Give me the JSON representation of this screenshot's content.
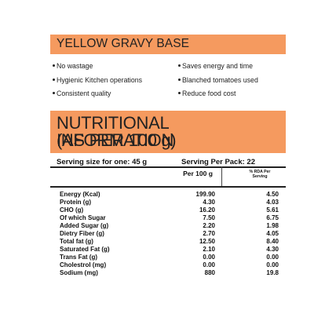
{
  "banner": {
    "title": "YELLOW GRAVY BASE"
  },
  "features": {
    "left": [
      "No wastage",
      "Hygienic Kitchen operations",
      "Consistent quality"
    ],
    "right": [
      "Saves energy and time",
      "Blanched tomatoes used",
      "Reduce food cost"
    ]
  },
  "nutrition": {
    "title_line1": "NUTRITIONAL INFORMATION",
    "title_line2": "(AS PER 100 g)",
    "serving_size": "Serving size for one: 45 g",
    "serving_pack": "Serving Per Pack: 22",
    "col_per100": "Per 100 g",
    "col_rda_line1": "% RDA Per",
    "col_rda_line2": "Serving",
    "rows": [
      {
        "name": "Energy (Kcal)",
        "per100": "199.90",
        "rda": "4.50"
      },
      {
        "name": "Protein (g)",
        "per100": "4.30",
        "rda": "4.03"
      },
      {
        "name": "CHO (g)",
        "per100": "16.20",
        "rda": "5.61"
      },
      {
        "name": "Of which Sugar",
        "per100": "7.50",
        "rda": "6.75"
      },
      {
        "name": "Added Sugar (g)",
        "per100": "2.20",
        "rda": "1.98"
      },
      {
        "name": "Dietry Fiber (g)",
        "per100": "2.70",
        "rda": "4.05"
      },
      {
        "name": "Total fat (g)",
        "per100": "12.50",
        "rda": "8.40"
      },
      {
        "name": "Saturated Fat (g)",
        "per100": "2.10",
        "rda": "4.30"
      },
      {
        "name": "Trans Fat (g)",
        "per100": "0.00",
        "rda": "0.00"
      },
      {
        "name": "Cholestrol (mg)",
        "per100": "0.00",
        "rda": "0.00"
      },
      {
        "name": "Sodium (mg)",
        "per100": "880",
        "rda": "19.8"
      }
    ]
  },
  "colors": {
    "accent": "#f59a5f",
    "text": "#1a1a1a"
  }
}
